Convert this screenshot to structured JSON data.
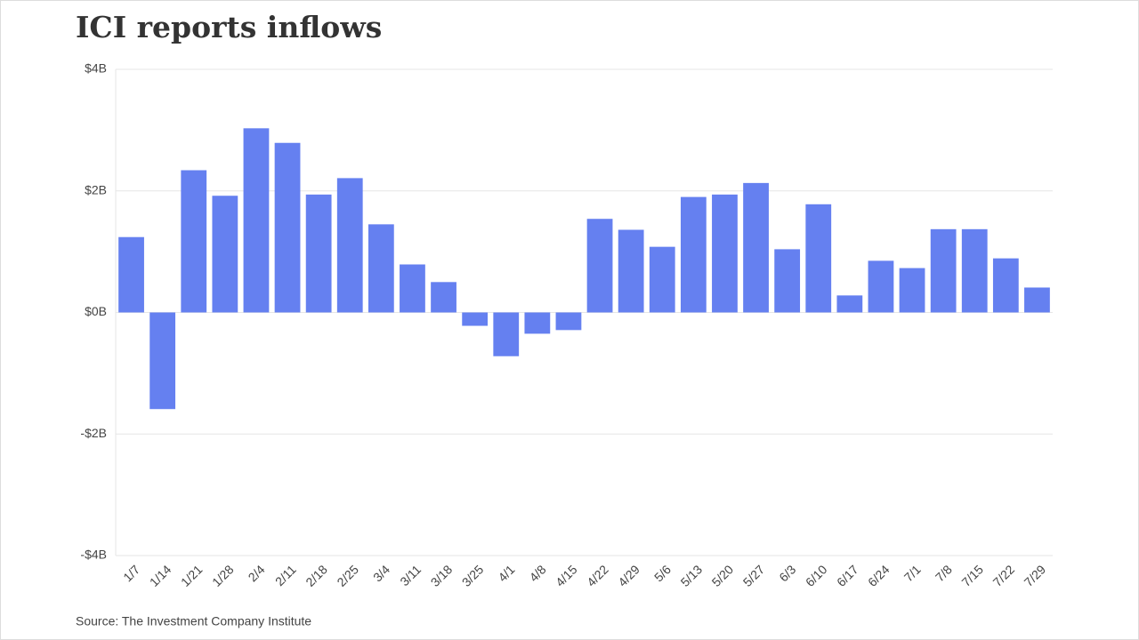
{
  "chart_data": {
    "type": "bar",
    "title": "ICI reports inflows",
    "source": "Source: The Investment Company Institute",
    "categories": [
      "1/7",
      "1/14",
      "1/21",
      "1/28",
      "2/4",
      "2/11",
      "2/18",
      "2/25",
      "3/4",
      "3/11",
      "3/18",
      "3/25",
      "4/1",
      "4/8",
      "4/15",
      "4/22",
      "4/29",
      "5/6",
      "5/13",
      "5/20",
      "5/27",
      "6/3",
      "6/10",
      "6/17",
      "6/24",
      "7/1",
      "7/8",
      "7/15",
      "7/22",
      "7/29"
    ],
    "values": [
      1.24,
      -1.59,
      2.34,
      1.92,
      3.03,
      2.79,
      1.94,
      2.21,
      1.45,
      0.79,
      0.5,
      -0.22,
      -0.72,
      -0.35,
      -0.29,
      1.54,
      1.36,
      1.08,
      1.9,
      1.94,
      2.13,
      1.04,
      1.78,
      0.28,
      0.85,
      0.73,
      1.37,
      1.37,
      0.89,
      0.41
    ],
    "color": "#6580f0",
    "ylim": [
      -4,
      4
    ],
    "yticks": [
      {
        "value": -4,
        "label": "-$4B"
      },
      {
        "value": -2,
        "label": "-$2B"
      },
      {
        "value": 0,
        "label": "$0B"
      },
      {
        "value": 2,
        "label": "$2B"
      },
      {
        "value": 4,
        "label": "$4B"
      }
    ],
    "grid": true
  }
}
